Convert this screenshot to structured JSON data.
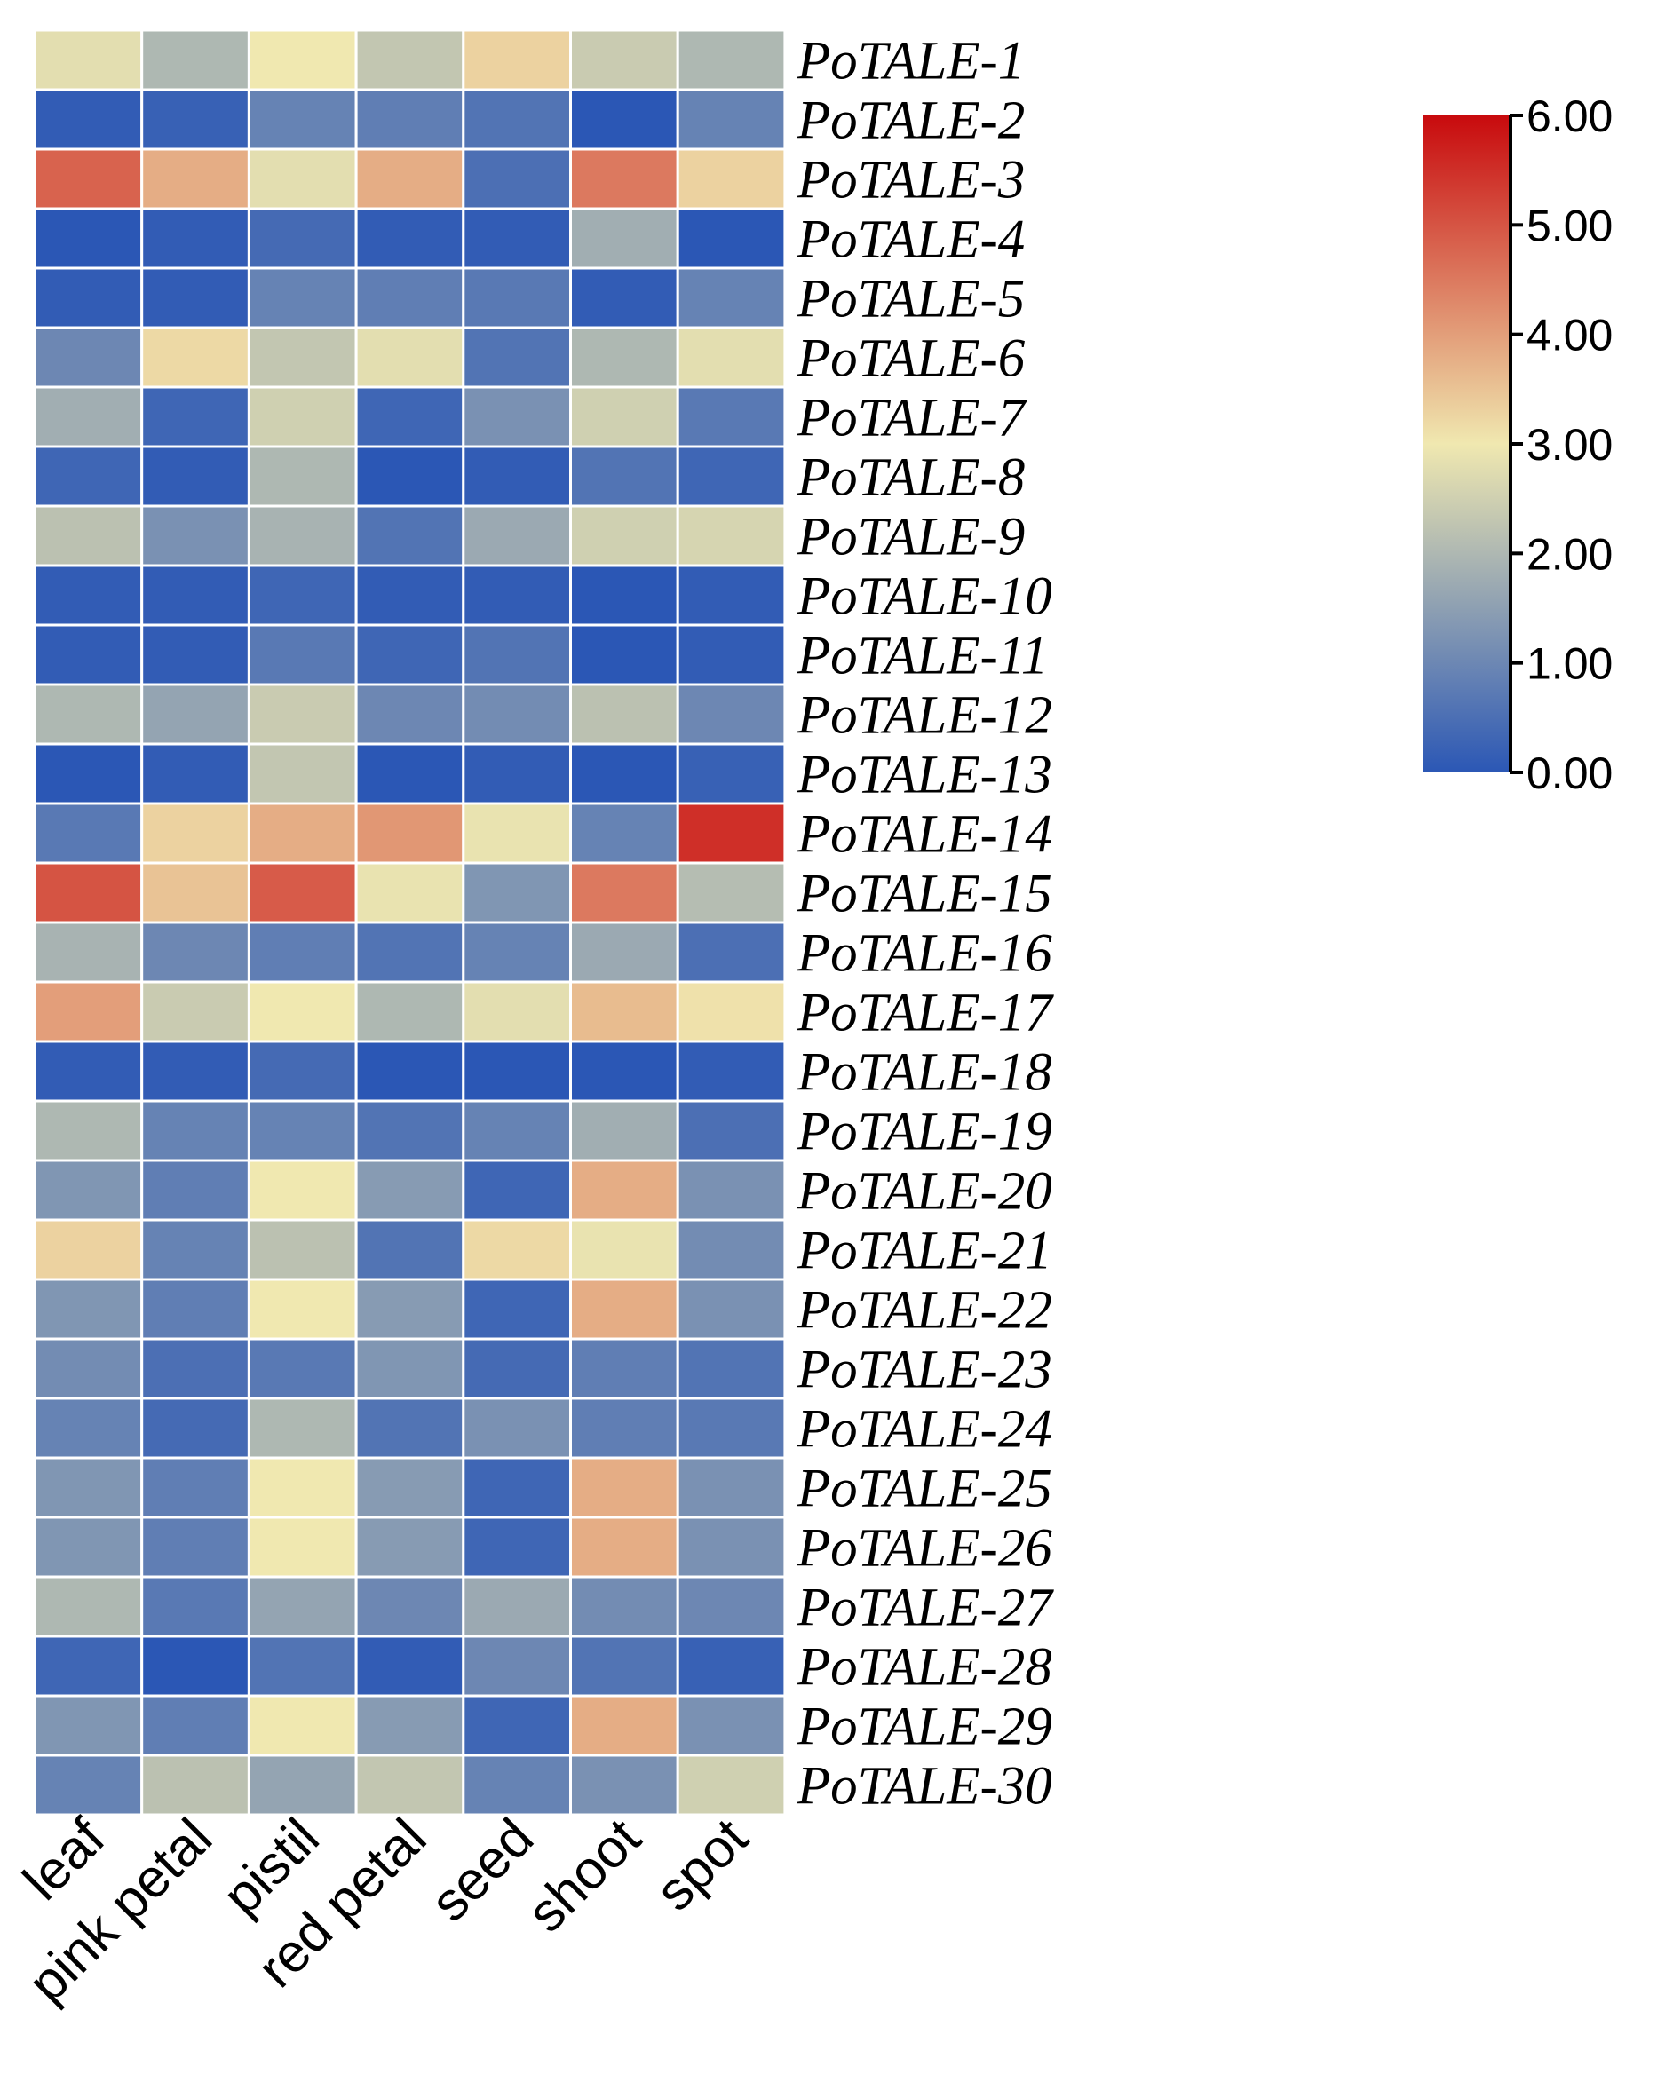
{
  "chart_data": {
    "type": "heatmap",
    "columns": [
      "leaf",
      "pink petal",
      "pistil",
      "red petal",
      "seed",
      "shoot",
      "spot"
    ],
    "rows": [
      "PoTALE-1",
      "PoTALE-2",
      "PoTALE-3",
      "PoTALE-4",
      "PoTALE-5",
      "PoTALE-6",
      "PoTALE-7",
      "PoTALE-8",
      "PoTALE-9",
      "PoTALE-10",
      "PoTALE-11",
      "PoTALE-12",
      "PoTALE-13",
      "PoTALE-14",
      "PoTALE-15",
      "PoTALE-16",
      "PoTALE-17",
      "PoTALE-18",
      "PoTALE-19",
      "PoTALE-20",
      "PoTALE-21",
      "PoTALE-22",
      "PoTALE-23",
      "PoTALE-24",
      "PoTALE-25",
      "PoTALE-26",
      "PoTALE-27",
      "PoTALE-28",
      "PoTALE-29",
      "PoTALE-30"
    ],
    "values": [
      [
        2.8,
        2.0,
        3.0,
        2.3,
        3.3,
        2.4,
        2.0
      ],
      [
        0.1,
        0.2,
        0.9,
        0.8,
        0.6,
        0.0,
        0.9
      ],
      [
        4.8,
        3.8,
        2.8,
        3.8,
        0.5,
        4.5,
        3.3
      ],
      [
        0.0,
        0.1,
        0.4,
        0.1,
        0.1,
        1.8,
        0.0
      ],
      [
        0.1,
        0.1,
        0.9,
        0.8,
        0.7,
        0.1,
        0.9
      ],
      [
        1.0,
        3.2,
        2.3,
        2.8,
        0.6,
        2.0,
        2.8
      ],
      [
        1.8,
        0.3,
        2.5,
        0.3,
        1.2,
        2.5,
        0.7
      ],
      [
        0.3,
        0.1,
        2.0,
        0.0,
        0.1,
        0.6,
        0.3
      ],
      [
        2.2,
        1.2,
        1.9,
        0.6,
        1.7,
        2.5,
        2.6
      ],
      [
        0.1,
        0.1,
        0.3,
        0.1,
        0.1,
        0.0,
        0.1
      ],
      [
        0.1,
        0.1,
        0.7,
        0.3,
        0.6,
        0.0,
        0.1
      ],
      [
        2.0,
        1.6,
        2.4,
        1.0,
        1.1,
        2.2,
        1.0
      ],
      [
        0.0,
        0.1,
        2.3,
        0.0,
        0.1,
        0.0,
        0.2
      ],
      [
        0.7,
        3.3,
        3.8,
        4.1,
        2.9,
        0.9,
        5.5
      ],
      [
        5.0,
        3.5,
        4.9,
        2.9,
        1.3,
        4.5,
        2.1
      ],
      [
        1.9,
        1.0,
        0.8,
        0.6,
        0.9,
        1.7,
        0.5
      ],
      [
        4.0,
        2.4,
        3.0,
        2.0,
        2.8,
        3.6,
        3.1
      ],
      [
        0.1,
        0.1,
        0.4,
        0.0,
        0.0,
        0.0,
        0.1
      ],
      [
        2.0,
        0.9,
        0.9,
        0.6,
        0.9,
        1.8,
        0.5
      ],
      [
        1.3,
        0.8,
        3.0,
        1.4,
        0.3,
        3.8,
        1.2
      ],
      [
        3.3,
        0.9,
        2.2,
        0.6,
        3.2,
        2.9,
        1.1
      ],
      [
        1.3,
        0.8,
        3.0,
        1.4,
        0.3,
        3.8,
        1.2
      ],
      [
        1.1,
        0.5,
        0.7,
        1.3,
        0.4,
        0.8,
        0.6
      ],
      [
        0.9,
        0.4,
        2.0,
        0.6,
        1.2,
        0.8,
        0.7
      ],
      [
        1.3,
        0.8,
        3.0,
        1.4,
        0.3,
        3.8,
        1.2
      ],
      [
        1.3,
        0.8,
        3.0,
        1.4,
        0.3,
        3.8,
        1.2
      ],
      [
        2.0,
        0.7,
        1.6,
        1.0,
        1.7,
        1.1,
        1.0
      ],
      [
        0.3,
        0.0,
        0.6,
        0.1,
        1.0,
        0.6,
        0.2
      ],
      [
        1.3,
        0.8,
        3.0,
        1.4,
        0.3,
        3.8,
        1.2
      ],
      [
        0.9,
        2.2,
        1.6,
        2.3,
        0.9,
        1.2,
        2.5
      ]
    ],
    "colorbar": {
      "min": 0,
      "max": 6,
      "ticks": [
        "0.00",
        "1.00",
        "2.00",
        "3.00",
        "4.00",
        "5.00",
        "6.00"
      ],
      "tick_values": [
        0,
        1,
        2,
        3,
        4,
        5,
        6
      ],
      "colors": [
        "#2b57b5",
        "#f0e8b0",
        "#c80a0d"
      ]
    },
    "grid": true,
    "legend_position": "top-right"
  }
}
